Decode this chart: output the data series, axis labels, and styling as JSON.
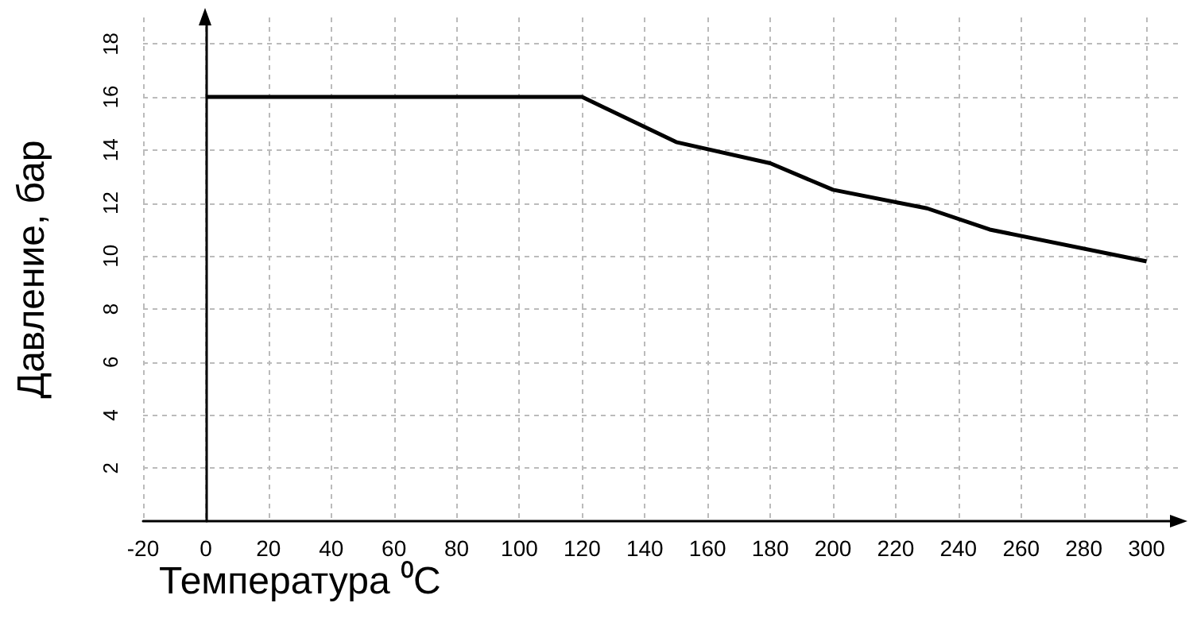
{
  "chart_data": {
    "type": "line",
    "xlabel": "Температура ⁰C",
    "ylabel": "Давление, бар",
    "x": [
      0,
      120,
      150,
      180,
      200,
      230,
      250,
      300
    ],
    "series": [
      {
        "color": "#000000",
        "values": [
          16,
          16,
          14.3,
          13.5,
          12.5,
          11.8,
          11,
          9.8
        ]
      }
    ],
    "xlim": [
      -20,
      310
    ],
    "xticks": [
      -20,
      0,
      20,
      40,
      60,
      80,
      100,
      120,
      140,
      160,
      180,
      200,
      220,
      240,
      260,
      280,
      300
    ],
    "ylim": [
      0,
      19
    ],
    "yticks": [
      2,
      4,
      6,
      8,
      10,
      12,
      14,
      16,
      18
    ],
    "grid": true,
    "marker": "none",
    "line_style": "solid"
  }
}
